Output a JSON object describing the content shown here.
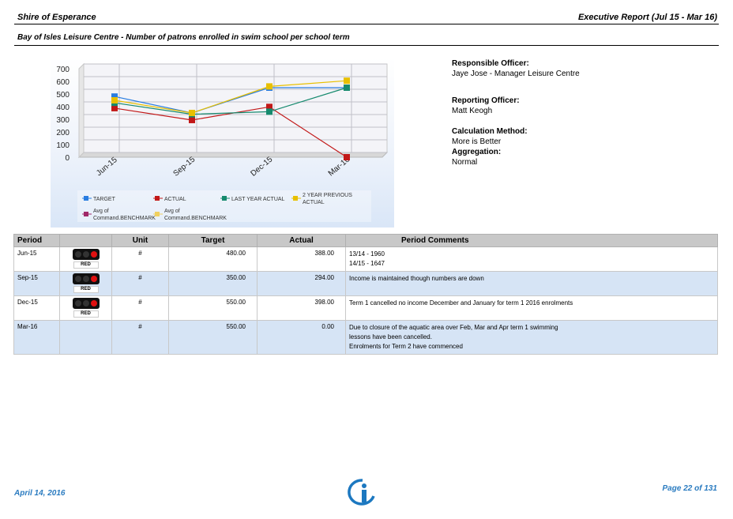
{
  "header": {
    "org": "Shire of Esperance",
    "report": "Executive Report (Jul 15 - Mar 16)"
  },
  "subtitle": "Bay of Isles Leisure Centre - Number of patrons enrolled in swim school per school term",
  "info": {
    "responsible_label": "Responsible Officer:",
    "responsible_value": "Jaye Jose - Manager Leisure Centre",
    "reporting_label": "Reporting Officer:",
    "reporting_value": "Matt Keogh",
    "calc_label": "Calculation Method:",
    "calc_value": "More is Better",
    "agg_label": "Aggregation:",
    "agg_value": "Normal"
  },
  "chart_data": {
    "type": "line",
    "categories": [
      "Jun-15",
      "Sep-15",
      "Dec-15",
      "Mar-16"
    ],
    "yticks": [
      0,
      100,
      200,
      300,
      400,
      500,
      600,
      700
    ],
    "ylim": [
      0,
      700
    ],
    "series": [
      {
        "name": "TARGET",
        "color": "#2a7de1",
        "values": [
          480,
          350,
          550,
          550
        ]
      },
      {
        "name": "ACTUAL",
        "color": "#c21818",
        "values": [
          388,
          294,
          398,
          0
        ]
      },
      {
        "name": "LAST YEAR ACTUAL",
        "color": "#168a6e",
        "values": [
          430,
          340,
          360,
          550
        ]
      },
      {
        "name": "2 YEAR PREVIOUS ACTUAL",
        "color": "#e8c000",
        "values": [
          450,
          350,
          560,
          605
        ]
      }
    ],
    "legend_extra": [
      {
        "name": "Avg of Command.BENCHMARK",
        "color": "#a02868"
      },
      {
        "name": "Avg of Command.BENCHMARK",
        "color": "#f0d060"
      }
    ],
    "legend_placement": "bottom",
    "grid": true
  },
  "table": {
    "headers": {
      "period": "Period",
      "unit": "Unit",
      "target": "Target",
      "actual": "Actual",
      "comments": "Period Comments"
    },
    "light_label": "RED",
    "rows": [
      {
        "period": "Jun-15",
        "unit": "#",
        "target": "480.00",
        "actual": "388.00",
        "status": "RED",
        "comments": [
          "13/14 - 1960",
          "14/15 - 1647"
        ]
      },
      {
        "period": "Sep-15",
        "unit": "#",
        "target": "350.00",
        "actual": "294.00",
        "status": "RED",
        "comments": [
          "Income is maintained though numbers are down"
        ]
      },
      {
        "period": "Dec-15",
        "unit": "#",
        "target": "550.00",
        "actual": "398.00",
        "status": "RED",
        "comments": [
          "Term 1 cancelled no income December and January for term 1 2016 enrolments"
        ]
      },
      {
        "period": "Mar-16",
        "unit": "#",
        "target": "550.00",
        "actual": "0.00",
        "status": "",
        "comments": [
          "Due to closure of the aquatic area over Feb, Mar and Apr term 1 swimming",
          "lessons have been cancelled.",
          "Enrolments for Term 2 have commenced"
        ]
      }
    ]
  },
  "footer": {
    "date": "April 14, 2016",
    "page": "Page 22 of 131"
  }
}
